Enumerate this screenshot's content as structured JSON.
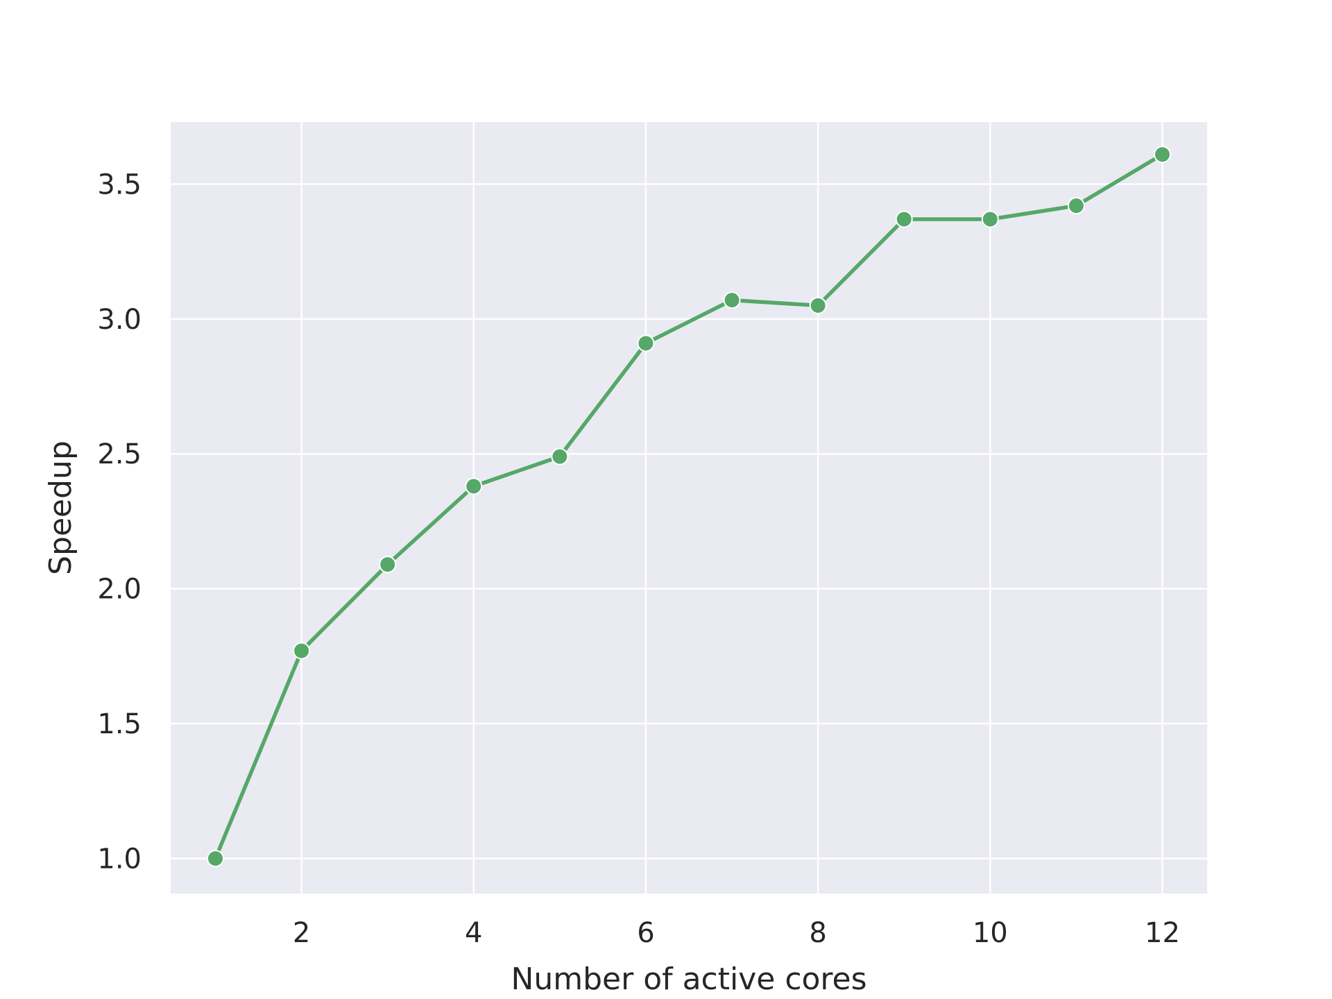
{
  "chart_data": {
    "type": "line",
    "title": "",
    "xlabel": "Number of active cores",
    "ylabel": "Speedup",
    "xlim": [
      0.48,
      12.52
    ],
    "ylim": [
      0.87,
      3.73
    ],
    "xticks": [
      2,
      4,
      6,
      8,
      10,
      12
    ],
    "xtick_labels": [
      "2",
      "4",
      "6",
      "8",
      "10",
      "12"
    ],
    "yticks": [
      1.0,
      1.5,
      2.0,
      2.5,
      3.0,
      3.5
    ],
    "ytick_labels": [
      "1.0",
      "1.5",
      "2.0",
      "2.5",
      "3.0",
      "3.5"
    ],
    "grid": true,
    "legend": "none",
    "background_color": "#eaeaf2",
    "series": [
      {
        "color": "#55a868",
        "marker": "circle",
        "x": [
          1,
          2,
          3,
          4,
          5,
          6,
          7,
          8,
          9,
          10,
          11,
          12
        ],
        "y": [
          1.0,
          1.77,
          2.09,
          2.38,
          2.49,
          2.91,
          3.07,
          3.05,
          3.37,
          3.37,
          3.42,
          3.61
        ]
      }
    ]
  }
}
